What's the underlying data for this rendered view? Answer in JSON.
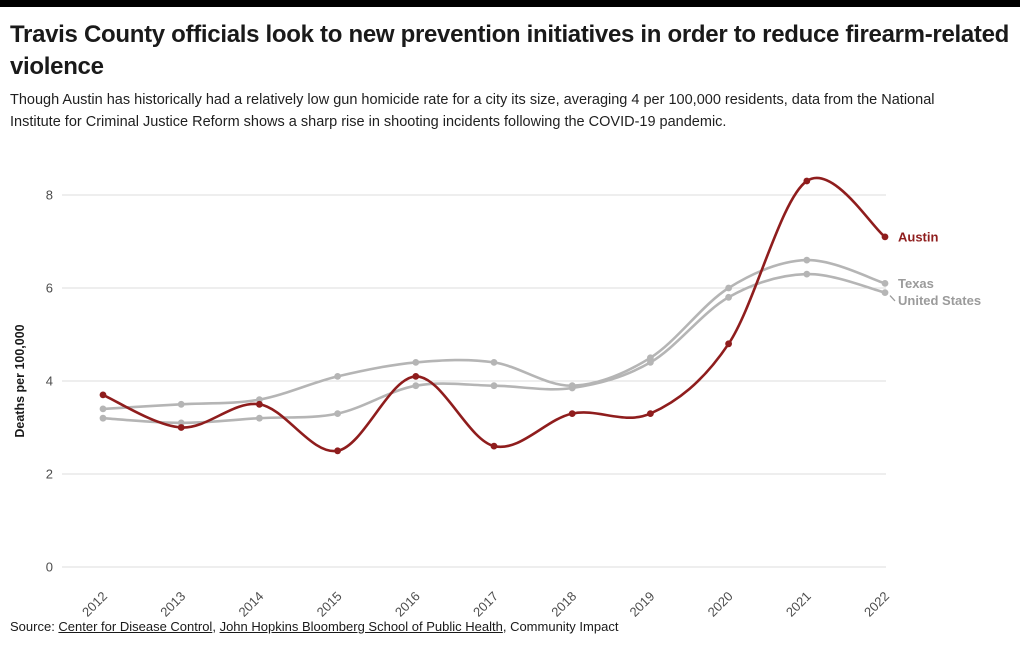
{
  "page": {
    "title": "Travis County officials look to new prevention initiatives in order to reduce firearm-related violence",
    "subtitle": "Though Austin has historically had a relatively low gun homicide rate for a city its size, averaging 4 per 100,000 residents, data from the National Institute for Criminal Justice Reform shows a sharp rise in shooting incidents following the COVID-19 pandemic."
  },
  "chart_data": {
    "type": "line",
    "title": "",
    "xlabel": "",
    "ylabel": "Deaths per 100,000",
    "ylim": [
      0,
      8.8
    ],
    "yticks": [
      0,
      2,
      4,
      6,
      8
    ],
    "grid": "horizontal",
    "legend_position": "line-end-labels",
    "line_style": "smooth-with-point-markers",
    "categories": [
      "2012",
      "2013",
      "2014",
      "2015",
      "2016",
      "2017",
      "2018",
      "2019",
      "2020",
      "2021",
      "2022"
    ],
    "series": [
      {
        "name": "Austin",
        "color": "#8f1d1d",
        "label_color": "#8f1d1d",
        "values": [
          3.7,
          3.0,
          3.5,
          2.5,
          4.1,
          2.6,
          3.3,
          3.3,
          4.8,
          8.3,
          7.1
        ]
      },
      {
        "name": "Texas",
        "color": "#b5b5b5",
        "label_color": "#9b9b9b",
        "values": [
          3.4,
          3.5,
          3.6,
          4.1,
          4.4,
          4.4,
          3.9,
          4.5,
          6.0,
          6.6,
          6.1
        ]
      },
      {
        "name": "United States",
        "color": "#b5b5b5",
        "label_color": "#9b9b9b",
        "values": [
          3.2,
          3.1,
          3.2,
          3.3,
          3.9,
          3.9,
          3.85,
          4.4,
          5.8,
          6.3,
          5.9
        ]
      }
    ],
    "colors": {
      "accent": "#8f1d1d",
      "muted_series": "#b5b5b5",
      "gridline": "#dcdcdc",
      "axis_text": "#4d4d4d"
    }
  },
  "source": {
    "prefix": "Source: ",
    "parts": [
      {
        "text": "Center for Disease Control",
        "link": true
      },
      {
        "text": ", ",
        "link": false
      },
      {
        "text": "John Hopkins Bloomberg School of Public Health",
        "link": true
      },
      {
        "text": ", Community Impact",
        "link": false
      }
    ]
  }
}
